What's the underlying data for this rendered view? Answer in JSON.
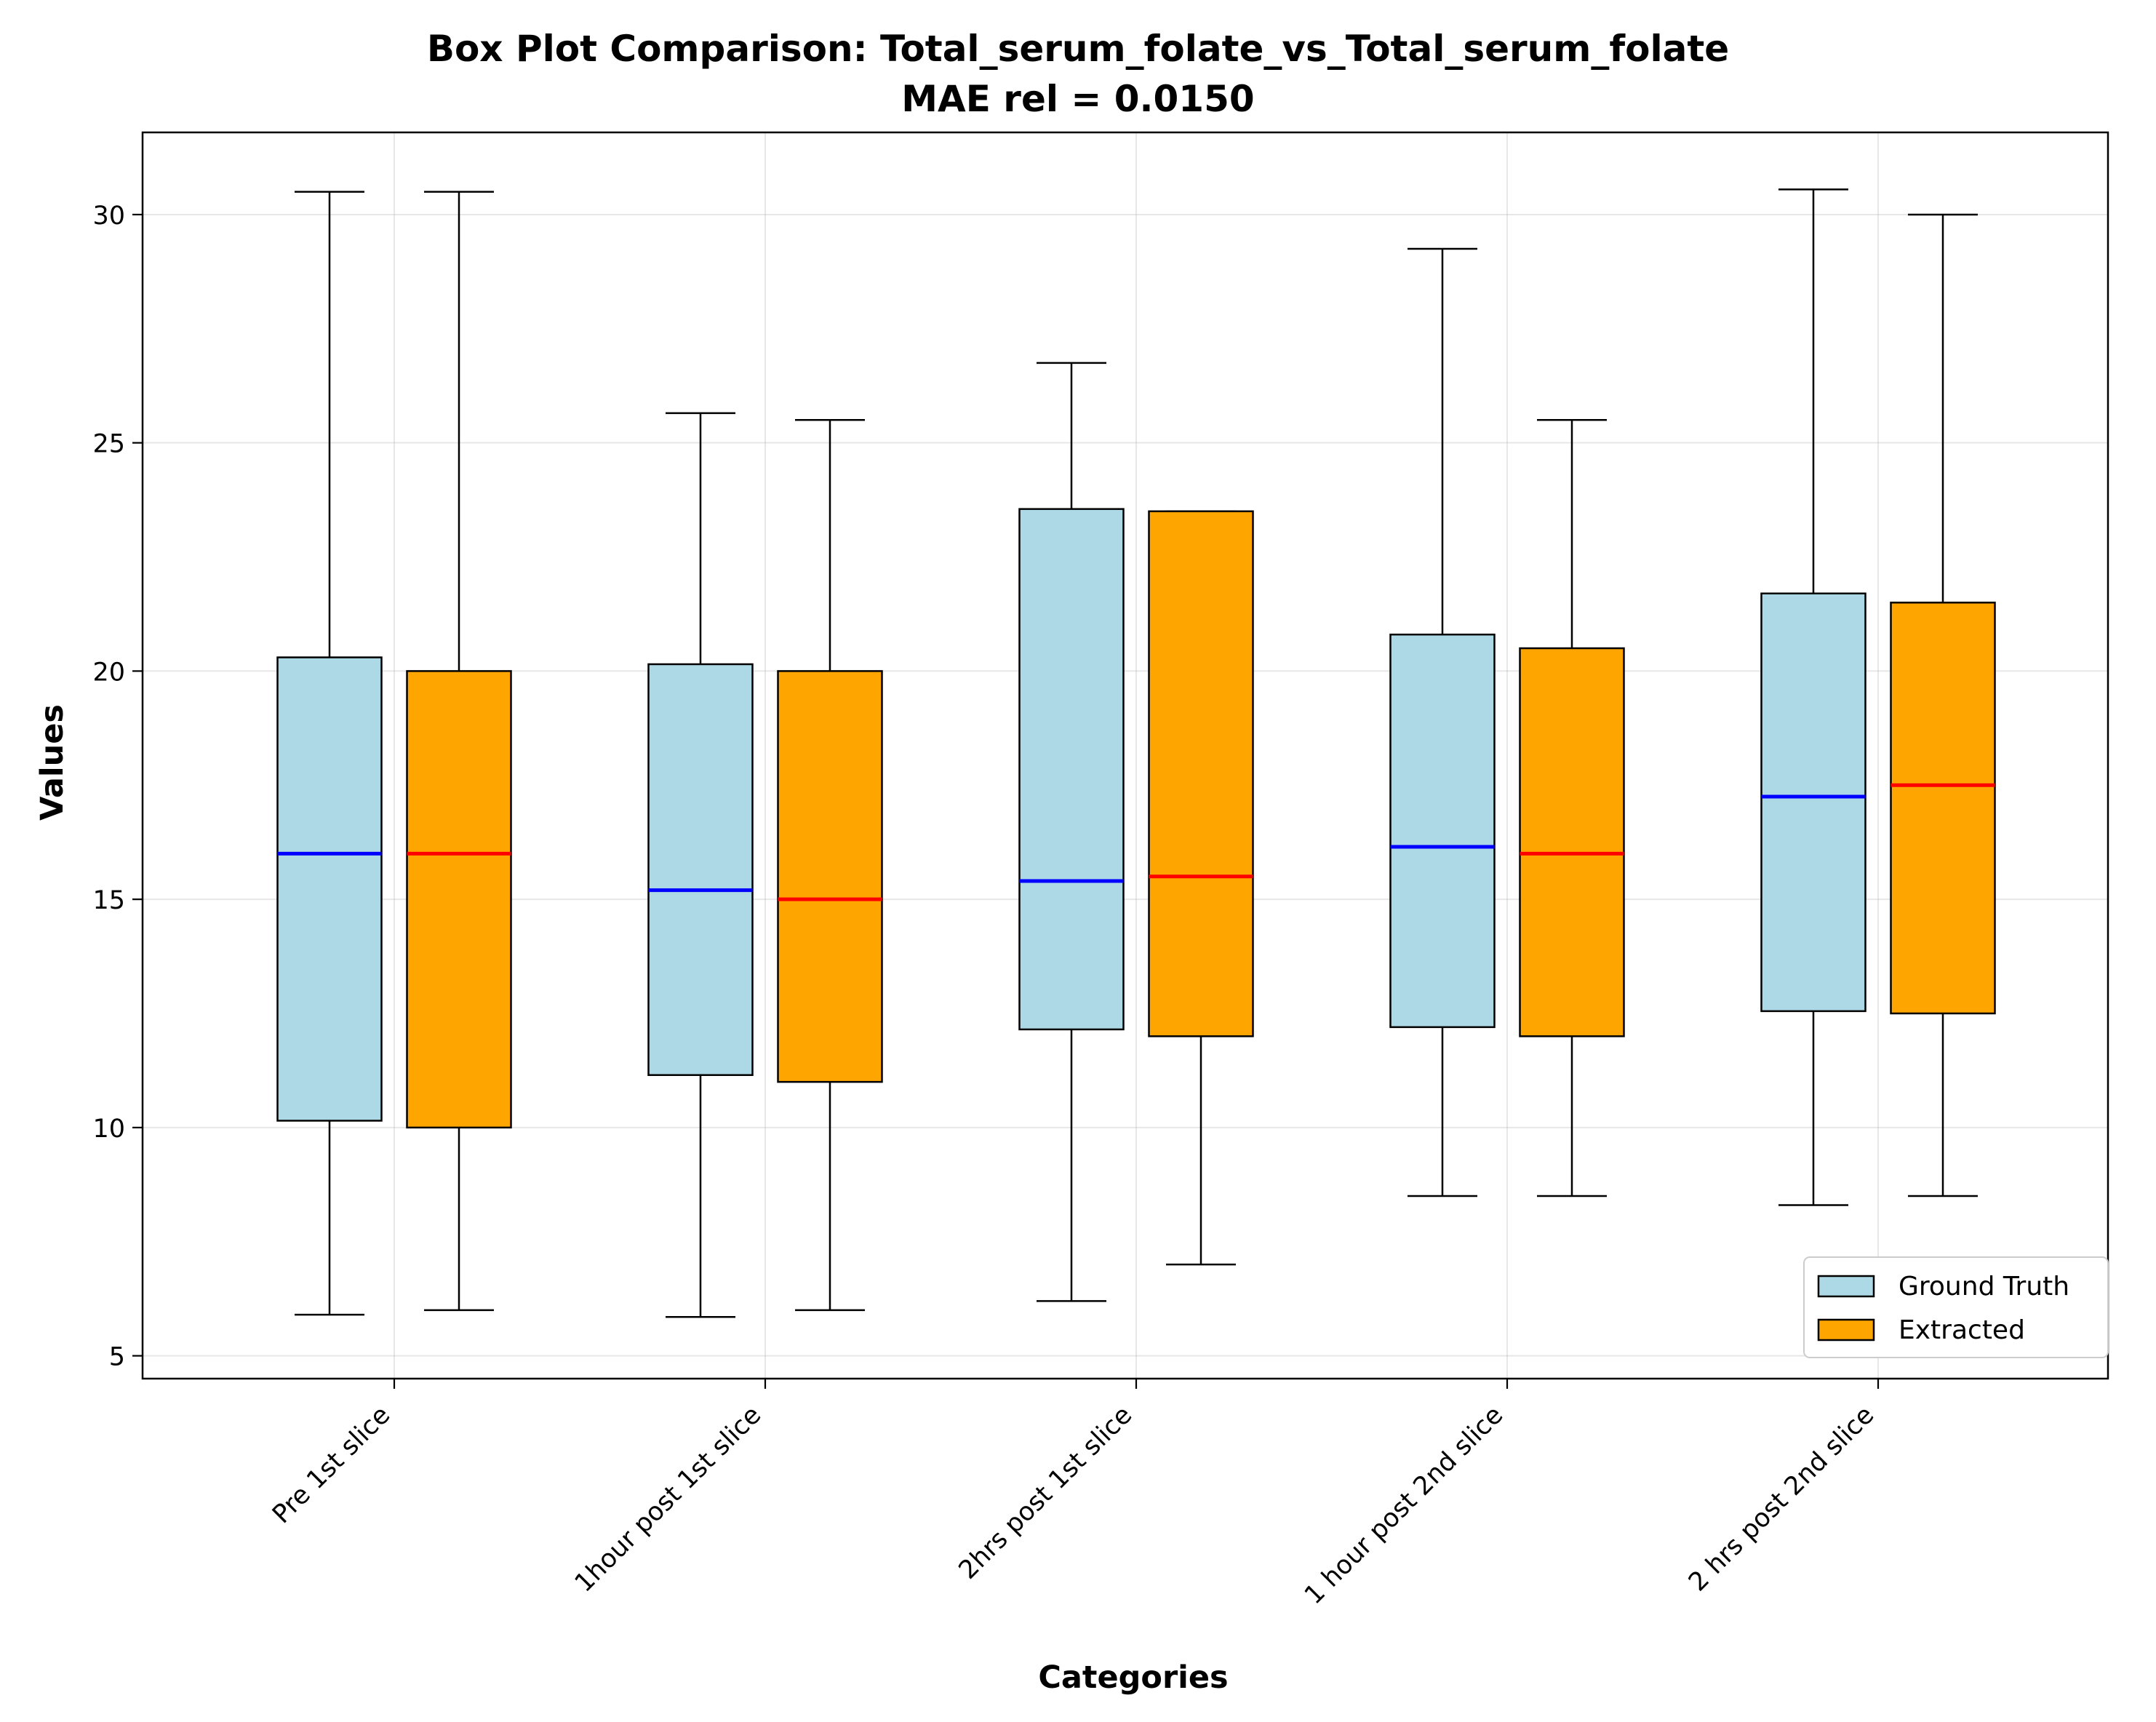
{
  "chart_data": {
    "type": "box",
    "title": "Box Plot Comparison: Total_serum_folate_vs_Total_serum_folate",
    "subtitle": "MAE rel = 0.0150",
    "xlabel": "Categories",
    "ylabel": "Values",
    "ylim": [
      4.5,
      31.8
    ],
    "yticks": [
      5,
      10,
      15,
      20,
      25,
      30
    ],
    "grid": true,
    "legend_position": "bottom-right",
    "categories": [
      "Pre 1st slice",
      "1hour post 1st slice",
      "2hrs post 1st slice",
      "1 hour post 2nd slice",
      "2 hrs post 2nd slice"
    ],
    "series": [
      {
        "name": "Ground Truth",
        "fill": "#add8e6",
        "median_color": "#0000ff",
        "boxes": [
          {
            "min": 5.9,
            "q1": 10.15,
            "median": 16.0,
            "q3": 20.3,
            "max": 30.5
          },
          {
            "min": 5.85,
            "q1": 11.15,
            "median": 15.2,
            "q3": 20.15,
            "max": 25.65
          },
          {
            "min": 6.2,
            "q1": 12.15,
            "median": 15.4,
            "q3": 23.55,
            "max": 26.75
          },
          {
            "min": 8.5,
            "q1": 12.2,
            "median": 16.15,
            "q3": 20.8,
            "max": 29.25
          },
          {
            "min": 8.3,
            "q1": 12.55,
            "median": 17.25,
            "q3": 21.7,
            "max": 30.55
          }
        ]
      },
      {
        "name": "Extracted",
        "fill": "#ffa500",
        "median_color": "#ff0000",
        "boxes": [
          {
            "min": 6.0,
            "q1": 10.0,
            "median": 16.0,
            "q3": 20.0,
            "max": 30.5
          },
          {
            "min": 6.0,
            "q1": 11.0,
            "median": 15.0,
            "q3": 20.0,
            "max": 25.5
          },
          {
            "min": 7.0,
            "q1": 12.0,
            "median": 15.5,
            "q3": 23.5,
            "max": 23.5
          },
          {
            "min": 8.5,
            "q1": 12.0,
            "median": 16.0,
            "q3": 20.5,
            "max": 25.5
          },
          {
            "min": 8.5,
            "q1": 12.5,
            "median": 17.5,
            "q3": 21.5,
            "max": 30.0
          }
        ]
      }
    ]
  }
}
